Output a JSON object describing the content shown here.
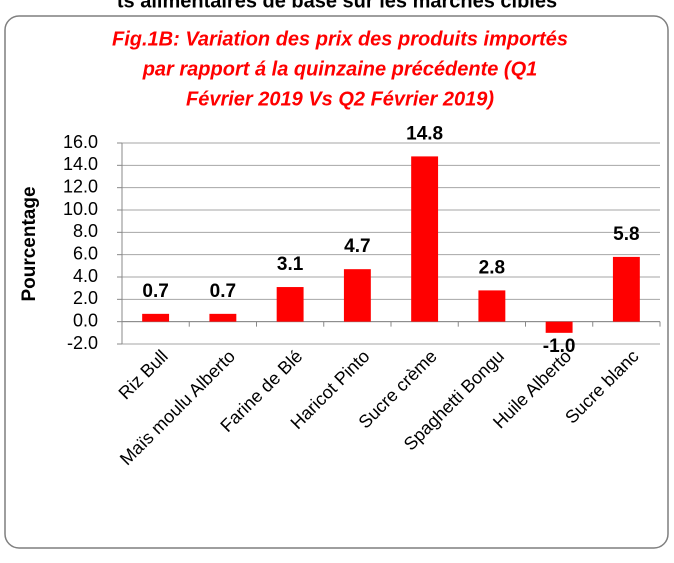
{
  "header": "ts alimentaires de base sur les marchés cibles",
  "chart_data": {
    "type": "bar",
    "title": [
      "Fig.1B: Variation des prix des produits importés",
      "par rapport á la quinzaine précédente (Q1",
      "Février 2019 Vs Q2 Février 2019)"
    ],
    "y_label": "Pourcentage",
    "categories": [
      "Riz  Bull",
      "Maïs moulu  Alberto",
      "Farine de Blé",
      "Haricot  Pinto",
      "Sucre crème",
      "Spaghetti Bongu",
      "Huile Alberto",
      "Sucre blanc"
    ],
    "values": [
      0.7,
      0.7,
      3.1,
      4.7,
      14.8,
      2.8,
      -1.0,
      5.8
    ],
    "value_labels": [
      "0.7",
      "0.7",
      "3.1",
      "4.7",
      "14.8",
      "2.8",
      "-1.0",
      "5.8"
    ],
    "color": "#ff0000",
    "ylim": [
      -2,
      16
    ],
    "yticks": [
      {
        "value": -2,
        "label": "-2.0"
      },
      {
        "value": 0,
        "label": "0.0"
      },
      {
        "value": 2,
        "label": "2.0"
      },
      {
        "value": 4,
        "label": "4.0"
      },
      {
        "value": 6,
        "label": "6.0"
      },
      {
        "value": 8,
        "label": "8.0"
      },
      {
        "value": 10,
        "label": "10.0"
      },
      {
        "value": 12,
        "label": "12.0"
      },
      {
        "value": 14,
        "label": "14.0"
      },
      {
        "value": 16,
        "label": "16.0"
      }
    ],
    "grid": true
  }
}
